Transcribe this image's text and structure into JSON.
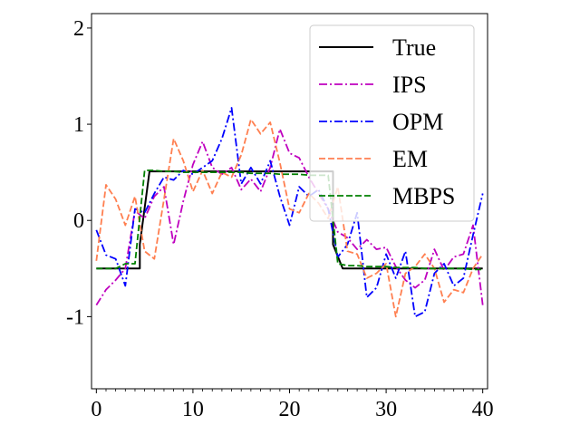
{
  "chart_data": {
    "type": "line",
    "title": "",
    "xlabel": "",
    "ylabel": "",
    "xlim": [
      -0.5,
      40.5
    ],
    "ylim": [
      -1.75,
      2.15
    ],
    "x_ticks": [
      0,
      10,
      20,
      30,
      40
    ],
    "x_tick_labels": [
      "0",
      "10",
      "20",
      "30",
      "40"
    ],
    "y_ticks": [
      2,
      1,
      0,
      -1
    ],
    "y_tick_labels": [
      "2",
      "1",
      "0",
      "-1"
    ],
    "grid": false,
    "legend_position": "top-right",
    "x": [
      0,
      1,
      2,
      3,
      4,
      5,
      6,
      7,
      8,
      9,
      10,
      11,
      12,
      13,
      14,
      15,
      16,
      17,
      18,
      19,
      20,
      21,
      22,
      23,
      24,
      25,
      26,
      27,
      28,
      29,
      30,
      31,
      32,
      33,
      34,
      35,
      36,
      37,
      38,
      39,
      40
    ],
    "series": [
      {
        "name": "True",
        "color": "#000000",
        "dash": "solid",
        "x": [
          0,
          4.5,
          4.5,
          5.5,
          24.5,
          24.5,
          25.5,
          40
        ],
        "values": [
          -0.5,
          -0.5,
          -0.25,
          0.51,
          0.51,
          -0.25,
          -0.5,
          -0.5
        ]
      },
      {
        "name": "IPS",
        "color": "#bf00bf",
        "dash": "dashdot",
        "values": [
          -0.88,
          -0.72,
          -0.62,
          -0.5,
          0.1,
          0.02,
          0.25,
          0.35,
          -0.25,
          0.2,
          0.58,
          0.82,
          0.55,
          0.48,
          0.55,
          0.32,
          0.43,
          0.3,
          0.55,
          0.95,
          0.7,
          0.65,
          0.45,
          0.28,
          0.12,
          -0.12,
          -0.18,
          -0.3,
          -0.2,
          -0.3,
          -0.28,
          -0.48,
          -0.62,
          -0.7,
          -0.62,
          -0.3,
          -0.52,
          -0.38,
          -0.35,
          -0.05,
          -0.88
        ]
      },
      {
        "name": "OPM",
        "color": "#0000ff",
        "dash": "dashdot",
        "values": [
          -0.1,
          -0.36,
          -0.4,
          -0.68,
          0.12,
          0.08,
          0.28,
          0.45,
          0.42,
          0.52,
          0.48,
          0.55,
          0.62,
          0.85,
          1.17,
          0.38,
          0.55,
          0.38,
          0.62,
          0.25,
          -0.05,
          0.35,
          0.25,
          0.32,
          0.12,
          -0.38,
          -0.25,
          0.08,
          -0.8,
          -0.7,
          -0.35,
          -0.6,
          -0.32,
          -1.0,
          -0.95,
          -0.55,
          -0.45,
          -0.68,
          -0.6,
          -0.15,
          0.28
        ]
      },
      {
        "name": "EM",
        "color": "#ff7f50",
        "dash": "dashed",
        "values": [
          -0.42,
          0.37,
          0.22,
          -0.05,
          0.25,
          -0.32,
          -0.4,
          0.22,
          0.85,
          0.62,
          0.3,
          0.52,
          0.28,
          0.5,
          0.45,
          0.68,
          1.05,
          0.9,
          1.02,
          0.6,
          0.12,
          0.08,
          0.28,
          0.18,
          0.02,
          0.35,
          -0.32,
          -0.35,
          -0.6,
          -0.55,
          -0.45,
          -1.0,
          -0.55,
          -0.48,
          -0.35,
          -0.5,
          -0.85,
          -0.72,
          -0.75,
          -0.5,
          -0.35
        ]
      },
      {
        "name": "MBPS",
        "color": "#008000",
        "dash": "dashed",
        "values": [
          -0.5,
          -0.5,
          -0.5,
          -0.45,
          -0.45,
          0.52,
          0.52,
          0.51,
          0.51,
          0.5,
          0.5,
          0.5,
          0.5,
          0.5,
          0.5,
          0.5,
          0.49,
          0.49,
          0.49,
          0.48,
          0.48,
          0.48,
          0.47,
          0.47,
          0.47,
          -0.45,
          -0.47,
          -0.47,
          -0.48,
          -0.48,
          -0.48,
          -0.49,
          -0.49,
          -0.49,
          -0.5,
          -0.5,
          -0.5,
          -0.5,
          -0.5,
          -0.51,
          -0.51
        ]
      }
    ]
  }
}
